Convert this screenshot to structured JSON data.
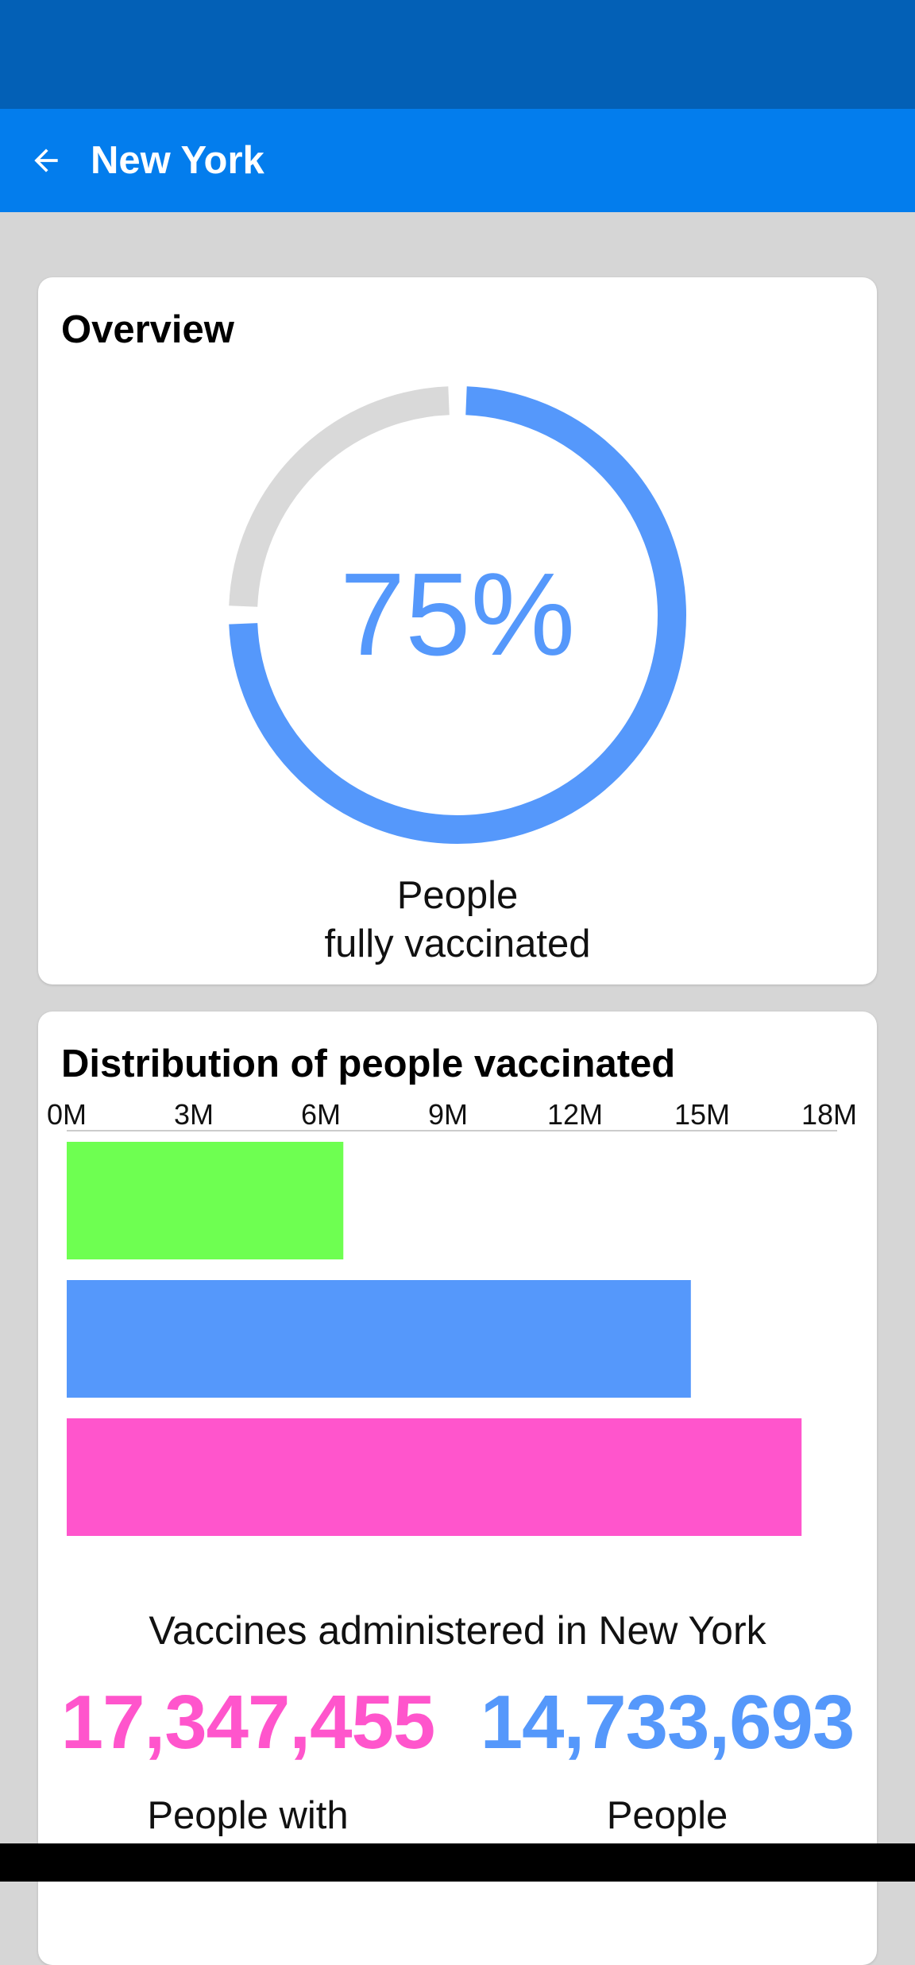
{
  "header": {
    "title": "New York",
    "back_icon": "arrow-left-icon"
  },
  "overview": {
    "title": "Overview",
    "percent_label": "75%",
    "percent_value": 0.75,
    "caption_line1": "People",
    "caption_line2": "fully vaccinated",
    "colors": {
      "fill": "#5598fb",
      "track": "#d9d9d9"
    }
  },
  "distribution": {
    "title": "Distribution of people vaccinated",
    "summary_title": "Vaccines administered in New York",
    "stats": [
      {
        "number": "17,347,455",
        "label": "People with",
        "color": "#ff55cc"
      },
      {
        "number": "14,733,693",
        "label": "People",
        "color": "#5598fb"
      }
    ]
  },
  "chart_data": {
    "type": "bar",
    "orientation": "horizontal",
    "xlim": [
      0,
      18000000
    ],
    "tick_labels": [
      "0M",
      "3M",
      "6M",
      "9M",
      "12M",
      "15M",
      "18M"
    ],
    "tick_values": [
      0,
      3000000,
      6000000,
      9000000,
      12000000,
      15000000,
      18000000
    ],
    "values": [
      6530000,
      14733693,
      17347455
    ],
    "colors": [
      "#6eff51",
      "#5598fb",
      "#ff55cc"
    ]
  }
}
